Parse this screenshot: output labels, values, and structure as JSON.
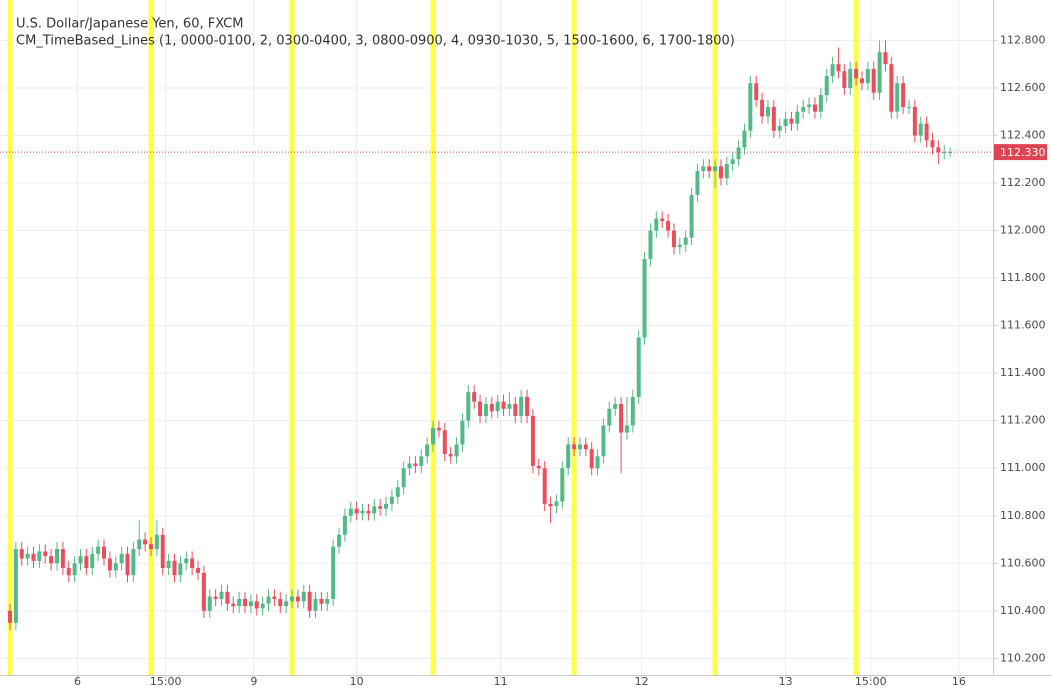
{
  "chart_data": {
    "type": "candlestick",
    "title": "U.S. Dollar/Japanese Yen, 60, FXCM",
    "subtitle": "CM_TimeBased_Lines (1, 0000-0100, 2, 0300-0400, 3, 0800-0900, 4, 0930-1030, 5, 1500-1600, 6, 1700-1800)",
    "up_color": "#53b987",
    "down_color": "#eb4d5c",
    "open": [
      110.4,
      110.35,
      110.66,
      110.62,
      110.64,
      110.61,
      110.65,
      110.63,
      110.6,
      110.66,
      110.58,
      110.55,
      110.6,
      110.63,
      110.58,
      110.64,
      110.67,
      110.62,
      110.57,
      110.6,
      110.64,
      110.55,
      110.66,
      110.7,
      110.68,
      110.66,
      110.72,
      110.58,
      110.61,
      110.55,
      110.6,
      110.62,
      110.58,
      110.56,
      110.4,
      110.46,
      110.45,
      110.48,
      110.43,
      110.42,
      110.45,
      110.42,
      110.44,
      110.41,
      110.43,
      110.46,
      110.45,
      110.42,
      110.44,
      110.46,
      110.44,
      110.48,
      110.4,
      110.45,
      110.43,
      110.45,
      110.67,
      110.72,
      110.8,
      110.83,
      110.81,
      110.82,
      110.81,
      110.84,
      110.83,
      110.85,
      110.88,
      110.92,
      111.0,
      111.02,
      111.01,
      111.05,
      111.1,
      111.17,
      111.16,
      111.06,
      111.05,
      111.1,
      111.2,
      111.32,
      111.28,
      111.22,
      111.27,
      111.24,
      111.28,
      111.25,
      111.27,
      111.22,
      111.3,
      111.22,
      111.01,
      111.0,
      110.85,
      110.84,
      110.86,
      111.0,
      111.1,
      111.08,
      111.1,
      111.08,
      111.0,
      111.05,
      111.18,
      111.25,
      111.27,
      111.15,
      111.18,
      111.3,
      111.55,
      111.88,
      112.0,
      112.05,
      112.04,
      112.0,
      111.93,
      111.94,
      111.97,
      112.15,
      112.25,
      112.27,
      112.25,
      112.27,
      112.22,
      112.28,
      112.3,
      112.35,
      112.42,
      112.62,
      112.55,
      112.48,
      112.52,
      112.42,
      112.44,
      112.47,
      112.45,
      112.5,
      112.52,
      112.53,
      112.5,
      112.57,
      112.65,
      112.7,
      112.67,
      112.6,
      112.68,
      112.64,
      112.62,
      112.68,
      112.58,
      112.75,
      112.7,
      112.5,
      112.62,
      112.52,
      112.52,
      112.4,
      112.45,
      112.38,
      112.35,
      112.33,
      112.33
    ],
    "high": [
      110.43,
      110.69,
      110.69,
      110.67,
      110.67,
      110.68,
      110.68,
      110.66,
      110.69,
      110.69,
      110.61,
      110.63,
      110.66,
      110.66,
      110.67,
      110.7,
      110.7,
      110.65,
      110.63,
      110.67,
      110.67,
      110.69,
      110.78,
      110.73,
      110.71,
      110.78,
      110.75,
      110.64,
      110.64,
      110.63,
      110.65,
      110.65,
      110.61,
      110.59,
      110.49,
      110.49,
      110.51,
      110.51,
      110.46,
      110.48,
      110.48,
      110.47,
      110.47,
      110.46,
      110.49,
      110.49,
      110.48,
      110.47,
      110.49,
      110.49,
      110.51,
      110.51,
      110.48,
      110.48,
      110.48,
      110.7,
      110.75,
      110.83,
      110.86,
      110.86,
      110.85,
      110.85,
      110.87,
      110.87,
      110.88,
      110.91,
      110.95,
      111.03,
      111.05,
      111.05,
      111.08,
      111.13,
      111.2,
      111.2,
      111.19,
      111.09,
      111.13,
      111.23,
      111.35,
      111.35,
      111.31,
      111.3,
      111.3,
      111.31,
      111.31,
      111.32,
      111.3,
      111.33,
      111.33,
      111.25,
      111.04,
      111.03,
      110.88,
      110.89,
      111.03,
      111.13,
      111.13,
      111.13,
      111.13,
      111.11,
      111.08,
      111.21,
      111.28,
      111.3,
      111.3,
      111.3,
      111.33,
      111.58,
      111.91,
      112.03,
      112.08,
      112.08,
      112.07,
      112.03,
      111.97,
      112.0,
      112.18,
      112.28,
      112.3,
      112.3,
      112.3,
      112.3,
      112.31,
      112.33,
      112.38,
      112.45,
      112.65,
      112.65,
      112.58,
      112.55,
      112.55,
      112.47,
      112.5,
      112.5,
      112.53,
      112.55,
      112.56,
      112.56,
      112.6,
      112.68,
      112.73,
      112.77,
      112.7,
      112.71,
      112.71,
      112.67,
      112.71,
      112.71,
      112.8,
      112.8,
      112.73,
      112.65,
      112.65,
      112.55,
      112.55,
      112.48,
      112.48,
      112.41,
      112.38,
      112.36,
      112.35
    ],
    "low": [
      110.32,
      110.32,
      110.59,
      110.59,
      110.58,
      110.58,
      110.6,
      110.57,
      110.57,
      110.55,
      110.52,
      110.52,
      110.57,
      110.55,
      110.55,
      110.61,
      110.59,
      110.54,
      110.54,
      110.57,
      110.52,
      110.52,
      110.63,
      110.65,
      110.63,
      110.63,
      110.55,
      110.55,
      110.52,
      110.52,
      110.57,
      110.55,
      110.53,
      110.37,
      110.37,
      110.42,
      110.42,
      110.4,
      110.39,
      110.39,
      110.39,
      110.39,
      110.38,
      110.38,
      110.4,
      110.42,
      110.39,
      110.39,
      110.41,
      110.41,
      110.41,
      110.37,
      110.37,
      110.4,
      110.4,
      110.42,
      110.64,
      110.69,
      110.77,
      110.78,
      110.78,
      110.78,
      110.78,
      110.8,
      110.8,
      110.82,
      110.85,
      110.89,
      110.97,
      110.98,
      110.98,
      111.02,
      111.07,
      111.13,
      111.03,
      111.02,
      111.02,
      111.07,
      111.17,
      111.25,
      111.19,
      111.19,
      111.21,
      111.21,
      111.22,
      111.22,
      111.19,
      111.19,
      111.19,
      110.98,
      110.97,
      110.82,
      110.77,
      110.81,
      110.83,
      110.97,
      111.05,
      111.05,
      111.05,
      110.97,
      110.97,
      111.02,
      111.15,
      111.22,
      110.98,
      111.12,
      111.15,
      111.27,
      111.52,
      111.85,
      111.97,
      112.01,
      111.97,
      111.9,
      111.9,
      111.91,
      111.94,
      112.12,
      112.22,
      112.22,
      112.18,
      112.19,
      112.19,
      112.25,
      112.27,
      112.32,
      112.39,
      112.52,
      112.45,
      112.45,
      112.39,
      112.39,
      112.41,
      112.42,
      112.42,
      112.47,
      112.49,
      112.47,
      112.47,
      112.54,
      112.62,
      112.64,
      112.57,
      112.57,
      112.61,
      112.59,
      112.59,
      112.55,
      112.55,
      112.67,
      112.47,
      112.47,
      112.49,
      112.49,
      112.37,
      112.37,
      112.35,
      112.32,
      112.28,
      112.3,
      112.31
    ],
    "close": [
      110.35,
      110.66,
      110.62,
      110.64,
      110.61,
      110.65,
      110.63,
      110.6,
      110.66,
      110.58,
      110.55,
      110.6,
      110.63,
      110.58,
      110.64,
      110.67,
      110.62,
      110.57,
      110.6,
      110.64,
      110.55,
      110.66,
      110.7,
      110.68,
      110.66,
      110.72,
      110.58,
      110.61,
      110.55,
      110.6,
      110.62,
      110.58,
      110.56,
      110.4,
      110.46,
      110.45,
      110.48,
      110.43,
      110.42,
      110.45,
      110.42,
      110.44,
      110.41,
      110.43,
      110.46,
      110.45,
      110.42,
      110.44,
      110.46,
      110.44,
      110.48,
      110.4,
      110.45,
      110.43,
      110.45,
      110.67,
      110.72,
      110.8,
      110.83,
      110.81,
      110.82,
      110.81,
      110.84,
      110.83,
      110.85,
      110.88,
      110.92,
      111.0,
      111.02,
      111.01,
      111.05,
      111.1,
      111.17,
      111.16,
      111.06,
      111.05,
      111.1,
      111.2,
      111.32,
      111.28,
      111.22,
      111.27,
      111.24,
      111.28,
      111.25,
      111.27,
      111.22,
      111.3,
      111.22,
      111.01,
      111.0,
      110.85,
      110.84,
      110.86,
      111.0,
      111.1,
      111.08,
      111.1,
      111.08,
      111.0,
      111.05,
      111.18,
      111.25,
      111.27,
      111.15,
      111.18,
      111.3,
      111.55,
      111.88,
      112.0,
      112.05,
      112.04,
      112.0,
      111.93,
      111.94,
      111.97,
      112.15,
      112.25,
      112.27,
      112.25,
      112.27,
      112.22,
      112.28,
      112.3,
      112.35,
      112.42,
      112.62,
      112.55,
      112.48,
      112.52,
      112.42,
      112.44,
      112.47,
      112.45,
      112.5,
      112.52,
      112.53,
      112.5,
      112.57,
      112.65,
      112.7,
      112.67,
      112.6,
      112.68,
      112.64,
      112.62,
      112.68,
      112.58,
      112.75,
      112.7,
      112.5,
      112.62,
      112.52,
      112.52,
      112.4,
      112.45,
      112.38,
      112.35,
      112.33,
      112.33,
      112.33
    ],
    "xlim": [
      -1.7,
      167.3
    ],
    "xticks": [
      {
        "value": 11.5,
        "label": "6"
      },
      {
        "value": 26.5,
        "label": "15:00"
      },
      {
        "value": 41.5,
        "label": "9"
      },
      {
        "value": 59,
        "label": "10"
      },
      {
        "value": 83.5,
        "label": "11"
      },
      {
        "value": 107.5,
        "label": "12"
      },
      {
        "value": 132,
        "label": "13"
      },
      {
        "value": 146.5,
        "label": "15:00"
      },
      {
        "value": 161.5,
        "label": "16"
      }
    ],
    "ylim": [
      110.13,
      112.97
    ],
    "yticks": [
      {
        "value": 110.2,
        "label": "110.200"
      },
      {
        "value": 110.4,
        "label": "110.400"
      },
      {
        "value": 110.6,
        "label": "110.600"
      },
      {
        "value": 110.8,
        "label": "110.800"
      },
      {
        "value": 111.0,
        "label": "111.000"
      },
      {
        "value": 111.2,
        "label": "111.200"
      },
      {
        "value": 111.4,
        "label": "111.400"
      },
      {
        "value": 111.6,
        "label": "111.600"
      },
      {
        "value": 111.8,
        "label": "111.800"
      },
      {
        "value": 112.0,
        "label": "112.000"
      },
      {
        "value": 112.2,
        "label": "112.200"
      },
      {
        "value": 112.4,
        "label": "112.400"
      },
      {
        "value": 112.6,
        "label": "112.600"
      },
      {
        "value": 112.8,
        "label": "112.800"
      }
    ],
    "grid": true,
    "highlight_lines": {
      "color": "#ffff44",
      "x": [
        0,
        24,
        48,
        72,
        96,
        120,
        144
      ]
    },
    "last_price": {
      "value": 112.33,
      "label": "112.330",
      "color": "#e04352"
    }
  }
}
